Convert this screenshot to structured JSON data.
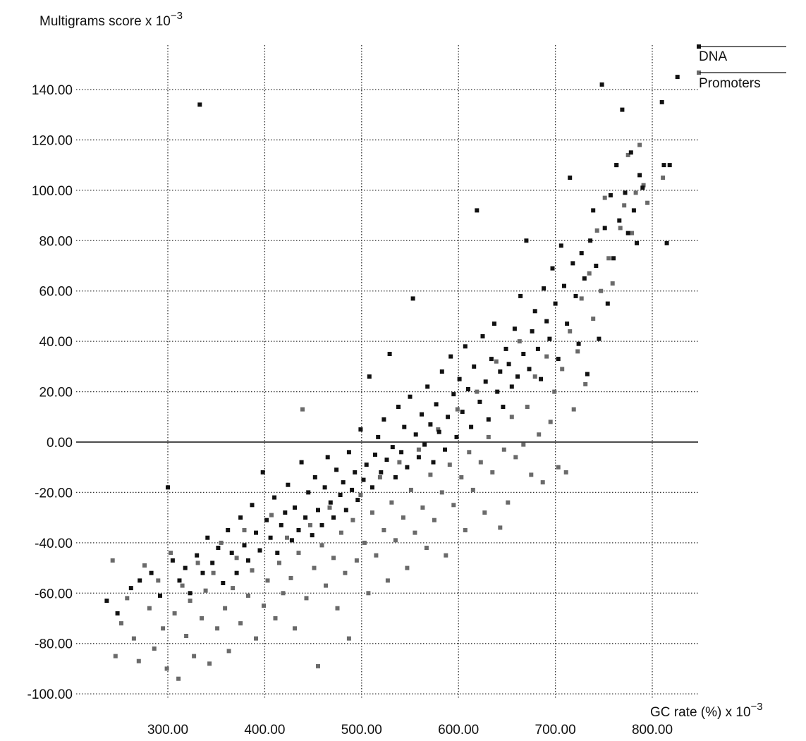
{
  "chart_data": {
    "type": "scatter",
    "ylabel": "Multigrams score x 10",
    "ylabel_exponent": "−3",
    "xlabel": "GC rate (%) x 10",
    "xlabel_exponent": "−3",
    "xlim": [
      215,
      1005
    ],
    "ylim": [
      -103,
      156
    ],
    "x_ticks": [
      300,
      400,
      500,
      600,
      700,
      800
    ],
    "x_tick_labels": [
      "300.00",
      "400.00",
      "500.00",
      "600.00",
      "700.00",
      "800.00"
    ],
    "y_ticks": [
      140,
      120,
      100,
      80,
      60,
      40,
      20,
      0,
      -20,
      -40,
      -60,
      -80,
      -100
    ],
    "y_tick_labels": [
      "140.00",
      "120.00",
      "100.00",
      "80.00",
      "60.00",
      "40.00",
      "20.00",
      "0.00",
      "-20.00",
      "-40.00",
      "-60.00",
      "-80.00",
      "-100.00"
    ],
    "grid": true,
    "legend_position": "top-right",
    "series": [
      {
        "name": "DNA",
        "color": "#111111",
        "marker": "square",
        "points": [
          [
            237,
            -63
          ],
          [
            248,
            -68
          ],
          [
            262,
            -58
          ],
          [
            271,
            -55
          ],
          [
            283,
            -52
          ],
          [
            292,
            -61
          ],
          [
            300,
            -18
          ],
          [
            305,
            -47
          ],
          [
            312,
            -55
          ],
          [
            318,
            -50
          ],
          [
            323,
            -60
          ],
          [
            330,
            -45
          ],
          [
            333,
            134
          ],
          [
            336,
            -52
          ],
          [
            341,
            -38
          ],
          [
            346,
            -48
          ],
          [
            352,
            -42
          ],
          [
            357,
            -56
          ],
          [
            362,
            -35
          ],
          [
            366,
            -44
          ],
          [
            371,
            -52
          ],
          [
            375,
            -30
          ],
          [
            379,
            -41
          ],
          [
            383,
            -47
          ],
          [
            387,
            -25
          ],
          [
            391,
            -36
          ],
          [
            395,
            -43
          ],
          [
            398,
            -12
          ],
          [
            402,
            -31
          ],
          [
            406,
            -38
          ],
          [
            410,
            -22
          ],
          [
            413,
            -44
          ],
          [
            417,
            -33
          ],
          [
            421,
            -28
          ],
          [
            424,
            -17
          ],
          [
            428,
            -39
          ],
          [
            431,
            -26
          ],
          [
            435,
            -35
          ],
          [
            438,
            -8
          ],
          [
            442,
            -30
          ],
          [
            445,
            -20
          ],
          [
            449,
            -37
          ],
          [
            452,
            -14
          ],
          [
            455,
            -27
          ],
          [
            459,
            -33
          ],
          [
            462,
            -18
          ],
          [
            465,
            -6
          ],
          [
            468,
            -24
          ],
          [
            471,
            -30
          ],
          [
            474,
            -11
          ],
          [
            478,
            -21
          ],
          [
            481,
            -16
          ],
          [
            484,
            -27
          ],
          [
            487,
            -4
          ],
          [
            490,
            -19
          ],
          [
            493,
            -12
          ],
          [
            496,
            -23
          ],
          [
            499,
            5
          ],
          [
            502,
            -15
          ],
          [
            505,
            -9
          ],
          [
            508,
            26
          ],
          [
            511,
            -18
          ],
          [
            514,
            -5
          ],
          [
            517,
            2
          ],
          [
            520,
            -12
          ],
          [
            523,
            9
          ],
          [
            526,
            -7
          ],
          [
            529,
            35
          ],
          [
            532,
            -2
          ],
          [
            535,
            -14
          ],
          [
            538,
            14
          ],
          [
            541,
            -4
          ],
          [
            544,
            6
          ],
          [
            547,
            -10
          ],
          [
            550,
            18
          ],
          [
            553,
            57
          ],
          [
            556,
            3
          ],
          [
            559,
            -6
          ],
          [
            562,
            11
          ],
          [
            565,
            -1
          ],
          [
            568,
            22
          ],
          [
            571,
            7
          ],
          [
            574,
            -8
          ],
          [
            577,
            15
          ],
          [
            580,
            4
          ],
          [
            583,
            28
          ],
          [
            586,
            -3
          ],
          [
            589,
            10
          ],
          [
            592,
            34
          ],
          [
            595,
            19
          ],
          [
            598,
            2
          ],
          [
            601,
            25
          ],
          [
            604,
            12
          ],
          [
            607,
            38
          ],
          [
            610,
            21
          ],
          [
            613,
            6
          ],
          [
            616,
            30
          ],
          [
            619,
            92
          ],
          [
            622,
            16
          ],
          [
            625,
            42
          ],
          [
            628,
            24
          ],
          [
            631,
            9
          ],
          [
            634,
            33
          ],
          [
            637,
            47
          ],
          [
            640,
            20
          ],
          [
            643,
            28
          ],
          [
            646,
            14
          ],
          [
            649,
            37
          ],
          [
            652,
            31
          ],
          [
            655,
            22
          ],
          [
            658,
            45
          ],
          [
            661,
            26
          ],
          [
            664,
            58
          ],
          [
            667,
            35
          ],
          [
            670,
            80
          ],
          [
            673,
            29
          ],
          [
            676,
            44
          ],
          [
            679,
            52
          ],
          [
            682,
            37
          ],
          [
            685,
            25
          ],
          [
            688,
            61
          ],
          [
            691,
            48
          ],
          [
            694,
            41
          ],
          [
            697,
            69
          ],
          [
            700,
            55
          ],
          [
            703,
            33
          ],
          [
            706,
            78
          ],
          [
            709,
            62
          ],
          [
            712,
            47
          ],
          [
            715,
            105
          ],
          [
            718,
            71
          ],
          [
            721,
            58
          ],
          [
            724,
            39
          ],
          [
            727,
            75
          ],
          [
            730,
            65
          ],
          [
            733,
            27
          ],
          [
            736,
            80
          ],
          [
            739,
            92
          ],
          [
            742,
            70
          ],
          [
            745,
            41
          ],
          [
            748,
            142
          ],
          [
            751,
            85
          ],
          [
            754,
            55
          ],
          [
            757,
            98
          ],
          [
            760,
            73
          ],
          [
            763,
            110
          ],
          [
            766,
            88
          ],
          [
            769,
            132
          ],
          [
            772,
            99
          ],
          [
            775,
            83
          ],
          [
            778,
            115
          ],
          [
            781,
            92
          ],
          [
            784,
            79
          ],
          [
            787,
            106
          ],
          [
            790,
            101
          ],
          [
            810,
            135
          ],
          [
            812,
            110
          ],
          [
            815,
            79
          ],
          [
            818,
            110
          ],
          [
            826,
            145
          ]
        ]
      },
      {
        "name": "Promoters",
        "color": "#6a6a6a",
        "marker": "square",
        "points": [
          [
            243,
            -47
          ],
          [
            246,
            -85
          ],
          [
            252,
            -72
          ],
          [
            258,
            -62
          ],
          [
            265,
            -78
          ],
          [
            270,
            -87
          ],
          [
            276,
            -49
          ],
          [
            281,
            -66
          ],
          [
            286,
            -82
          ],
          [
            290,
            -55
          ],
          [
            295,
            -74
          ],
          [
            299,
            -90
          ],
          [
            303,
            -44
          ],
          [
            307,
            -68
          ],
          [
            311,
            -94
          ],
          [
            315,
            -57
          ],
          [
            319,
            -77
          ],
          [
            323,
            -63
          ],
          [
            327,
            -85
          ],
          [
            331,
            -48
          ],
          [
            335,
            -70
          ],
          [
            339,
            -59
          ],
          [
            343,
            -88
          ],
          [
            347,
            -52
          ],
          [
            351,
            -74
          ],
          [
            355,
            -40
          ],
          [
            359,
            -66
          ],
          [
            363,
            -83
          ],
          [
            367,
            -58
          ],
          [
            371,
            -46
          ],
          [
            375,
            -72
          ],
          [
            379,
            -35
          ],
          [
            383,
            -61
          ],
          [
            387,
            -51
          ],
          [
            391,
            -78
          ],
          [
            395,
            -43
          ],
          [
            399,
            -65
          ],
          [
            403,
            -55
          ],
          [
            407,
            -29
          ],
          [
            411,
            -70
          ],
          [
            415,
            -48
          ],
          [
            419,
            -60
          ],
          [
            423,
            -38
          ],
          [
            427,
            -54
          ],
          [
            431,
            -74
          ],
          [
            435,
            -44
          ],
          [
            439,
            13
          ],
          [
            443,
            -62
          ],
          [
            447,
            -33
          ],
          [
            451,
            -50
          ],
          [
            455,
            -89
          ],
          [
            459,
            -41
          ],
          [
            463,
            -57
          ],
          [
            467,
            -26
          ],
          [
            471,
            -46
          ],
          [
            475,
            -66
          ],
          [
            479,
            -36
          ],
          [
            483,
            -52
          ],
          [
            487,
            -78
          ],
          [
            491,
            -31
          ],
          [
            495,
            -47
          ],
          [
            499,
            -21
          ],
          [
            503,
            -40
          ],
          [
            507,
            -60
          ],
          [
            511,
            -28
          ],
          [
            515,
            -45
          ],
          [
            519,
            -14
          ],
          [
            523,
            -35
          ],
          [
            527,
            -55
          ],
          [
            531,
            -24
          ],
          [
            535,
            -39
          ],
          [
            539,
            -8
          ],
          [
            543,
            -30
          ],
          [
            547,
            -50
          ],
          [
            551,
            -19
          ],
          [
            555,
            -36
          ],
          [
            559,
            -3
          ],
          [
            563,
            -26
          ],
          [
            567,
            -42
          ],
          [
            571,
            -13
          ],
          [
            575,
            -31
          ],
          [
            579,
            5
          ],
          [
            583,
            -20
          ],
          [
            587,
            -45
          ],
          [
            591,
            -9
          ],
          [
            595,
            -25
          ],
          [
            599,
            13
          ],
          [
            603,
            -14
          ],
          [
            607,
            -35
          ],
          [
            611,
            -4
          ],
          [
            615,
            -19
          ],
          [
            619,
            20
          ],
          [
            623,
            -8
          ],
          [
            627,
            -28
          ],
          [
            631,
            2
          ],
          [
            635,
            -12
          ],
          [
            639,
            32
          ],
          [
            643,
            -34
          ],
          [
            647,
            -3
          ],
          [
            651,
            -24
          ],
          [
            655,
            10
          ],
          [
            659,
            -6
          ],
          [
            663,
            40
          ],
          [
            667,
            -1
          ],
          [
            671,
            14
          ],
          [
            675,
            -13
          ],
          [
            679,
            26
          ],
          [
            683,
            3
          ],
          [
            687,
            -16
          ],
          [
            691,
            34
          ],
          [
            695,
            8
          ],
          [
            699,
            20
          ],
          [
            703,
            -10
          ],
          [
            707,
            29
          ],
          [
            711,
            -12
          ],
          [
            715,
            44
          ],
          [
            719,
            13
          ],
          [
            723,
            36
          ],
          [
            727,
            57
          ],
          [
            731,
            23
          ],
          [
            735,
            67
          ],
          [
            739,
            49
          ],
          [
            743,
            84
          ],
          [
            747,
            60
          ],
          [
            751,
            97
          ],
          [
            755,
            73
          ],
          [
            759,
            63
          ],
          [
            763,
            110
          ],
          [
            767,
            85
          ],
          [
            771,
            94
          ],
          [
            775,
            114
          ],
          [
            779,
            83
          ],
          [
            783,
            99
          ],
          [
            787,
            118
          ],
          [
            791,
            102
          ],
          [
            795,
            95
          ],
          [
            811,
            105
          ]
        ]
      }
    ]
  }
}
